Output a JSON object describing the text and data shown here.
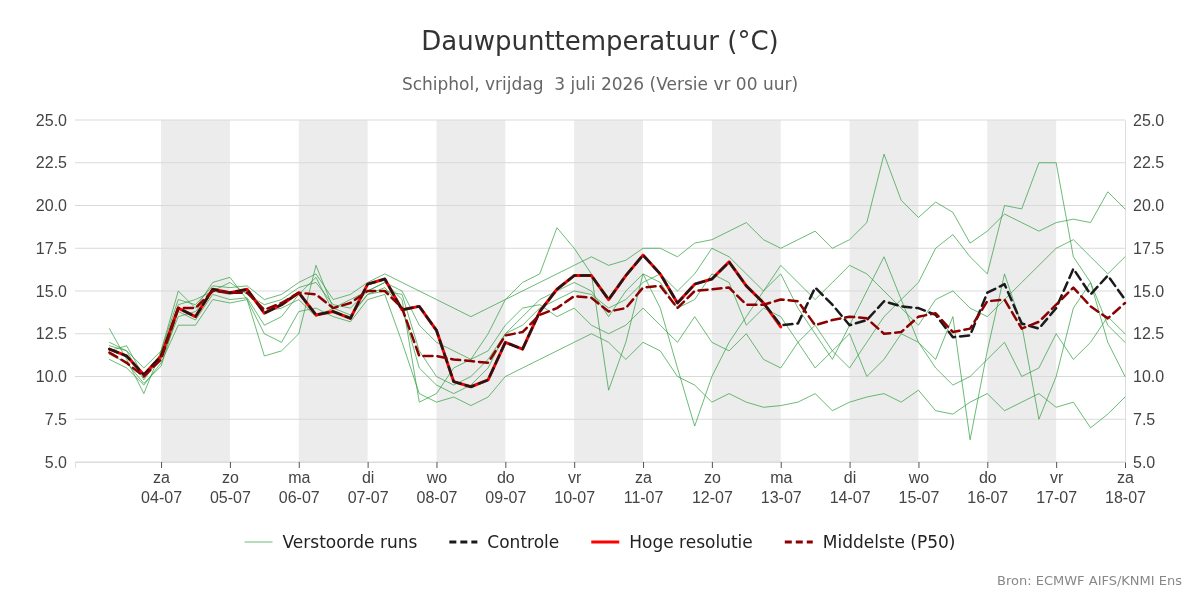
{
  "chart_data": {
    "type": "line",
    "title": "Dauwpunttemperatuur (°C)",
    "subtitle": "Schiphol, vrijdag  3 juli 2026 (Versie vr 00 uur)",
    "annotations": [
      "Bron: ECMWF AIFS/KNMI Ens"
    ],
    "x": [
      "2026-07-03T06:00",
      "2026-07-03T12:00",
      "2026-07-03T18:00",
      "2026-07-04T00:00",
      "2026-07-04T06:00",
      "2026-07-04T12:00",
      "2026-07-04T18:00",
      "2026-07-05T00:00",
      "2026-07-05T06:00",
      "2026-07-05T12:00",
      "2026-07-05T18:00",
      "2026-07-06T00:00",
      "2026-07-06T06:00",
      "2026-07-06T12:00",
      "2026-07-06T18:00",
      "2026-07-07T00:00",
      "2026-07-07T06:00",
      "2026-07-07T12:00",
      "2026-07-07T18:00",
      "2026-07-08T00:00",
      "2026-07-08T06:00",
      "2026-07-08T12:00",
      "2026-07-08T18:00",
      "2026-07-09T00:00",
      "2026-07-09T06:00",
      "2026-07-09T12:00",
      "2026-07-09T18:00",
      "2026-07-10T00:00",
      "2026-07-10T06:00",
      "2026-07-10T12:00",
      "2026-07-10T18:00",
      "2026-07-11T00:00",
      "2026-07-11T06:00",
      "2026-07-11T12:00",
      "2026-07-11T18:00",
      "2026-07-12T00:00",
      "2026-07-12T06:00",
      "2026-07-12T12:00",
      "2026-07-12T18:00",
      "2026-07-13T00:00",
      "2026-07-13T06:00",
      "2026-07-13T12:00",
      "2026-07-13T18:00",
      "2026-07-14T00:00",
      "2026-07-14T06:00",
      "2026-07-14T12:00",
      "2026-07-14T18:00",
      "2026-07-15T00:00",
      "2026-07-15T06:00",
      "2026-07-15T12:00",
      "2026-07-15T18:00",
      "2026-07-16T00:00",
      "2026-07-16T06:00",
      "2026-07-16T12:00",
      "2026-07-16T18:00",
      "2026-07-17T00:00",
      "2026-07-17T06:00",
      "2026-07-17T12:00",
      "2026-07-17T18:00",
      "2026-07-18T00:00"
    ],
    "xlim": [
      "2026-07-02T18:00",
      "2026-07-18T00:00"
    ],
    "xticks": [
      {
        "value": "2026-07-04",
        "label": "za 04-07"
      },
      {
        "value": "2026-07-05",
        "label": "zo 05-07"
      },
      {
        "value": "2026-07-06",
        "label": "ma 06-07"
      },
      {
        "value": "2026-07-07",
        "label": "di 07-07"
      },
      {
        "value": "2026-07-08",
        "label": "wo 08-07"
      },
      {
        "value": "2026-07-09",
        "label": "do 09-07"
      },
      {
        "value": "2026-07-10",
        "label": "vr 10-07"
      },
      {
        "value": "2026-07-11",
        "label": "za 11-07"
      },
      {
        "value": "2026-07-12",
        "label": "zo 12-07"
      },
      {
        "value": "2026-07-13",
        "label": "ma 13-07"
      },
      {
        "value": "2026-07-14",
        "label": "di 14-07"
      },
      {
        "value": "2026-07-15",
        "label": "wo 15-07"
      },
      {
        "value": "2026-07-16",
        "label": "do 16-07"
      },
      {
        "value": "2026-07-17",
        "label": "vr 17-07"
      },
      {
        "value": "2026-07-18",
        "label": "za 18-07"
      }
    ],
    "ylim": [
      5,
      25
    ],
    "yticks": [
      {
        "value": 5,
        "label": "5.0"
      },
      {
        "value": 7.5,
        "label": "7.5"
      },
      {
        "value": 10,
        "label": "10.0"
      },
      {
        "value": 12.5,
        "label": "12.5"
      },
      {
        "value": 15,
        "label": "15.0"
      },
      {
        "value": 17.5,
        "label": "17.5"
      },
      {
        "value": 20,
        "label": "20.0"
      },
      {
        "value": 22.5,
        "label": "22.5"
      },
      {
        "value": 25,
        "label": "25.0"
      }
    ],
    "y2lim": [
      5,
      25
    ],
    "y2ticks": [
      {
        "value": 5,
        "label": "5.0"
      },
      {
        "value": 7.5,
        "label": "7.5"
      },
      {
        "value": 10,
        "label": "10.0"
      },
      {
        "value": 12.5,
        "label": "12.5"
      },
      {
        "value": 15,
        "label": "15.0"
      },
      {
        "value": 17.5,
        "label": "17.5"
      },
      {
        "value": 20,
        "label": "20.0"
      },
      {
        "value": 22.5,
        "label": "22.5"
      },
      {
        "value": 25,
        "label": "25.0"
      }
    ],
    "grid": "y",
    "legend": "bottom",
    "bands": [
      {
        "axis": "x",
        "from": "2026-07-04",
        "to": "2026-07-05",
        "color": "#ececec"
      },
      {
        "axis": "x",
        "from": "2026-07-06",
        "to": "2026-07-07",
        "color": "#ececec"
      },
      {
        "axis": "x",
        "from": "2026-07-08",
        "to": "2026-07-09",
        "color": "#ececec"
      },
      {
        "axis": "x",
        "from": "2026-07-10",
        "to": "2026-07-11",
        "color": "#ececec"
      },
      {
        "axis": "x",
        "from": "2026-07-12",
        "to": "2026-07-13",
        "color": "#ececec"
      },
      {
        "axis": "x",
        "from": "2026-07-14",
        "to": "2026-07-15",
        "color": "#ececec"
      },
      {
        "axis": "x",
        "from": "2026-07-16",
        "to": "2026-07-17",
        "color": "#ececec"
      }
    ],
    "series": [
      {
        "name": "Verstoorde runs",
        "color": "#2e9e3e",
        "values": [
          11.8,
          11.5,
          10.5,
          11.5,
          14.5,
          14.2,
          15.3,
          15.2,
          15.3,
          14.5,
          14.8,
          15.5,
          16.0,
          14.5,
          14.8,
          15.5,
          16.0,
          15.5,
          15.0,
          14.5,
          14.0,
          13.5,
          14.0,
          14.5,
          15.0,
          15.5,
          16.0,
          16.5,
          17.0,
          16.5,
          16.8,
          17.5,
          17.5,
          17.0,
          17.8,
          18.0,
          18.5,
          19.0,
          18.0,
          17.5,
          18.0,
          18.5,
          17.5,
          18.0,
          19.0,
          23.0,
          20.3,
          19.3,
          20.2,
          19.6,
          17.8,
          18.5,
          19.5,
          19.0,
          18.5,
          19.0,
          19.2,
          19.0,
          20.8,
          19.8
        ]
      },
      {
        "color": "#2e9e3e",
        "values": [
          11.0,
          10.5,
          9.5,
          10.8,
          13.0,
          13.0,
          14.5,
          14.3,
          14.5,
          12.5,
          12.0,
          13.8,
          14.0,
          13.5,
          13.2,
          14.5,
          14.8,
          12.0,
          9.0,
          8.5,
          8.8,
          8.3,
          8.8,
          10.0,
          10.5,
          11.0,
          11.5,
          12.0,
          12.5,
          12.0,
          11.0,
          12.0,
          11.5,
          10.0,
          9.5,
          8.5,
          9.0,
          8.5,
          8.2,
          8.3,
          8.5,
          9.0,
          8.0,
          8.5,
          8.8,
          9.0,
          8.5,
          9.2,
          8.0,
          7.8,
          8.5,
          9.0,
          8.0,
          8.5,
          9.0,
          8.2,
          8.5,
          7.0,
          7.8,
          8.8
        ]
      },
      {
        "color": "#2e9e3e",
        "values": [
          12.8,
          11.0,
          9.0,
          11.5,
          15.0,
          14.0,
          15.5,
          15.8,
          14.5,
          11.2,
          11.5,
          12.5,
          16.5,
          14.0,
          14.5,
          15.0,
          15.5,
          14.5,
          8.5,
          9.0,
          10.5,
          11.0,
          12.5,
          14.5,
          15.5,
          16.0,
          18.7,
          17.5,
          16.0,
          9.2,
          12.0,
          16.0,
          14.0,
          10.5,
          7.1,
          10.0,
          12.0,
          13.5,
          15.0,
          16.0,
          14.0,
          12.5,
          11.0,
          13.0,
          15.0,
          17.0,
          14.5,
          12.0,
          11.0,
          13.5,
          6.3,
          11.5,
          16.0,
          13.0,
          7.5,
          10.0,
          14.0,
          15.5,
          12.0,
          10.0
        ]
      },
      {
        "color": "#2e9e3e",
        "values": [
          11.5,
          11.8,
          10.0,
          11.0,
          13.5,
          13.8,
          15.0,
          14.8,
          15.0,
          13.8,
          14.0,
          14.5,
          13.5,
          14.0,
          13.6,
          14.8,
          15.2,
          14.0,
          10.5,
          9.5,
          9.0,
          9.5,
          10.5,
          12.5,
          13.0,
          14.0,
          14.5,
          15.0,
          14.8,
          14.0,
          14.5,
          15.5,
          16.0,
          15.0,
          16.0,
          17.5,
          17.0,
          16.0,
          15.0,
          16.5,
          15.5,
          14.5,
          15.5,
          16.5,
          16.0,
          15.0,
          14.0,
          13.0,
          14.5,
          15.0,
          14.0,
          13.5,
          14.5,
          15.5,
          16.5,
          17.5,
          18.0,
          17.0,
          16.0,
          17.0
        ]
      },
      {
        "color": "#2e9e3e",
        "values": [
          12.0,
          11.5,
          9.8,
          11.2,
          14.2,
          14.5,
          15.0,
          15.5,
          14.8,
          14.2,
          14.5,
          15.2,
          15.5,
          14.2,
          14.0,
          15.0,
          15.5,
          15.0,
          13.0,
          12.0,
          11.5,
          11.0,
          11.5,
          13.0,
          14.0,
          14.2,
          13.5,
          14.0,
          13.0,
          12.5,
          13.0,
          14.0,
          13.0,
          12.0,
          13.5,
          12.0,
          11.5,
          12.5,
          11.0,
          10.5,
          12.0,
          13.0,
          11.5,
          10.5,
          12.0,
          13.5,
          14.5,
          15.5,
          17.5,
          18.3,
          17.0,
          16.0,
          20.0,
          19.8,
          22.5,
          22.5,
          17.0,
          15.5,
          13.0,
          12.0
        ]
      },
      {
        "color": "#2e9e3e",
        "values": [
          11.3,
          10.8,
          9.6,
          10.6,
          13.8,
          13.3,
          14.8,
          14.5,
          14.6,
          13.0,
          13.5,
          14.8,
          15.8,
          13.8,
          13.5,
          14.8,
          15.0,
          14.8,
          11.5,
          10.0,
          9.5,
          10.0,
          11.0,
          12.5,
          13.5,
          14.5,
          15.0,
          15.5,
          15.0,
          13.5,
          15.0,
          16.0,
          15.5,
          14.0,
          14.5,
          16.0,
          15.5,
          13.0,
          14.0,
          13.5,
          12.0,
          10.5,
          11.5,
          12.5,
          10.0,
          11.0,
          12.5,
          12.0,
          10.5,
          9.5,
          10.0,
          11.0,
          12.0,
          10.0,
          10.5,
          12.5,
          11.0,
          12.0,
          13.5,
          12.5
        ]
      },
      {
        "name": "Controle",
        "color": "#1a1a1a",
        "line_style": "dashed",
        "values": [
          11.6,
          11.2,
          10.1,
          11.2,
          14.0,
          13.5,
          15.1,
          14.9,
          15.1,
          13.7,
          14.2,
          14.9,
          13.6,
          13.8,
          13.4,
          15.4,
          15.7,
          13.9,
          14.1,
          12.7,
          9.7,
          9.4,
          9.8,
          12.0,
          11.6,
          13.8,
          15.1,
          15.9,
          15.9,
          14.5,
          15.9,
          17.1,
          16.0,
          14.3,
          15.4,
          15.7,
          16.7,
          15.3,
          14.3,
          13.0,
          13.1,
          15.2,
          14.2,
          13.0,
          13.3,
          14.4,
          14.1,
          14.0,
          13.6,
          12.3,
          12.4,
          14.9,
          15.4,
          13.1,
          12.8,
          14.0,
          16.3,
          14.8,
          15.9,
          14.5
        ]
      },
      {
        "name": "Hoge resolutie",
        "color": "#ff0000",
        "values": [
          11.6,
          11.2,
          10.1,
          11.2,
          14.0,
          13.5,
          15.1,
          14.9,
          15.1,
          13.7,
          14.2,
          14.9,
          13.6,
          13.8,
          13.4,
          15.4,
          15.7,
          13.9,
          14.1,
          12.7,
          9.7,
          9.4,
          9.8,
          12.0,
          11.6,
          13.8,
          15.1,
          15.9,
          15.9,
          14.5,
          15.9,
          17.1,
          16.0,
          14.3,
          15.4,
          15.7,
          16.7,
          15.3,
          14.3,
          12.9,
          null,
          null,
          null,
          null,
          null,
          null,
          null,
          null,
          null,
          null,
          null,
          null,
          null,
          null,
          null,
          null,
          null,
          null,
          null,
          null
        ]
      },
      {
        "name": "Middelste (P50)",
        "color": "#8b0000",
        "line_style": "dashed",
        "values": [
          11.4,
          10.8,
          10.0,
          11.0,
          14.0,
          14.0,
          15.0,
          14.9,
          14.9,
          13.9,
          14.3,
          14.9,
          14.8,
          14.0,
          14.3,
          15.0,
          15.0,
          14.0,
          11.2,
          11.2,
          11.0,
          10.9,
          10.8,
          12.4,
          12.6,
          13.6,
          14.0,
          14.7,
          14.6,
          13.8,
          14.0,
          15.2,
          15.3,
          14.0,
          15.0,
          15.1,
          15.2,
          14.2,
          14.2,
          14.5,
          14.4,
          13.0,
          13.3,
          13.5,
          13.4,
          12.5,
          12.6,
          13.5,
          13.7,
          12.6,
          12.8,
          14.4,
          14.5,
          12.8,
          13.2,
          14.2,
          15.2,
          14.1,
          13.4,
          14.3
        ]
      }
    ]
  }
}
